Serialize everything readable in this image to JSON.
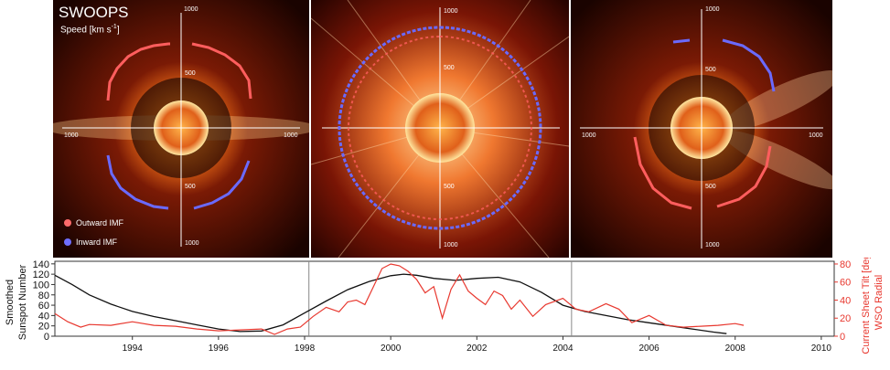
{
  "polar_panels": {
    "title": "SWOOPS",
    "subtitle": "Speed [km s",
    "subtitle_sup": "-1",
    "subtitle_end": "]",
    "ticks": [
      "1000",
      "500",
      "500",
      "1000"
    ],
    "legend": [
      {
        "label": "Outward IMF",
        "color": "#ff6b6b"
      },
      {
        "label": "Inward IMF",
        "color": "#6f6fff"
      }
    ]
  },
  "chart_data": {
    "type": "line",
    "x_ticks": [
      "1994",
      "1996",
      "1998",
      "2000",
      "2002",
      "2004",
      "2006",
      "2008",
      "2010"
    ],
    "xlim": [
      1992.2,
      2010.3
    ],
    "left_axis": {
      "label_line1": "Smoothed",
      "label_line2": "Sunspot Number",
      "ticks": [
        0,
        20,
        40,
        60,
        80,
        100,
        120,
        140
      ],
      "ylim": [
        0,
        145
      ]
    },
    "right_axis": {
      "label_line1": "Current Sheet Tilt [deg]",
      "label_line2": "WSO Radial",
      "ticks": [
        0,
        20,
        40,
        60,
        80
      ],
      "ylim": [
        0,
        83
      ],
      "color": "#e8382f"
    },
    "vertical_markers": [
      1998.1,
      2004.2
    ],
    "series": [
      {
        "axis": "left",
        "color": "#111111",
        "x": [
          1992.2,
          1992.6,
          1993.0,
          1993.5,
          1994.0,
          1994.5,
          1995.0,
          1995.5,
          1996.0,
          1996.5,
          1997.0,
          1997.5,
          1998.0,
          1998.5,
          1999.0,
          1999.5,
          2000.0,
          2000.3,
          2000.6,
          2001.0,
          2001.5,
          2002.0,
          2002.5,
          2003.0,
          2003.5,
          2004.0,
          2004.5,
          2005.0,
          2005.5,
          2006.0,
          2006.5,
          2007.0,
          2007.5,
          2007.8
        ],
        "values": [
          118,
          100,
          80,
          62,
          48,
          38,
          30,
          22,
          14,
          9,
          10,
          22,
          45,
          68,
          90,
          106,
          117,
          120,
          118,
          112,
          108,
          112,
          114,
          105,
          85,
          60,
          48,
          40,
          32,
          26,
          20,
          14,
          8,
          5
        ]
      },
      {
        "axis": "right",
        "color": "#e8382f",
        "x": [
          1992.2,
          1992.5,
          1992.8,
          1993.0,
          1993.5,
          1994.0,
          1994.5,
          1995.0,
          1995.5,
          1996.0,
          1996.5,
          1997.0,
          1997.3,
          1997.6,
          1997.9,
          1998.2,
          1998.5,
          1998.8,
          1999.0,
          1999.2,
          1999.4,
          1999.6,
          1999.8,
          2000.0,
          2000.2,
          2000.4,
          2000.6,
          2000.8,
          2001.0,
          2001.2,
          2001.4,
          2001.6,
          2001.8,
          2002.0,
          2002.2,
          2002.4,
          2002.6,
          2002.8,
          2003.0,
          2003.3,
          2003.6,
          2004.0,
          2004.3,
          2004.6,
          2005.0,
          2005.3,
          2005.6,
          2006.0,
          2006.4,
          2006.8,
          2007.2,
          2007.6,
          2008.0,
          2008.2
        ],
        "values": [
          25,
          16,
          10,
          13,
          12,
          16,
          12,
          11,
          8,
          6,
          7,
          8,
          2,
          8,
          10,
          22,
          32,
          27,
          38,
          40,
          35,
          55,
          75,
          80,
          78,
          72,
          63,
          48,
          55,
          20,
          52,
          68,
          50,
          42,
          35,
          50,
          45,
          30,
          40,
          22,
          35,
          42,
          30,
          27,
          36,
          30,
          15,
          23,
          12,
          10,
          11,
          12,
          14,
          12
        ]
      }
    ]
  }
}
